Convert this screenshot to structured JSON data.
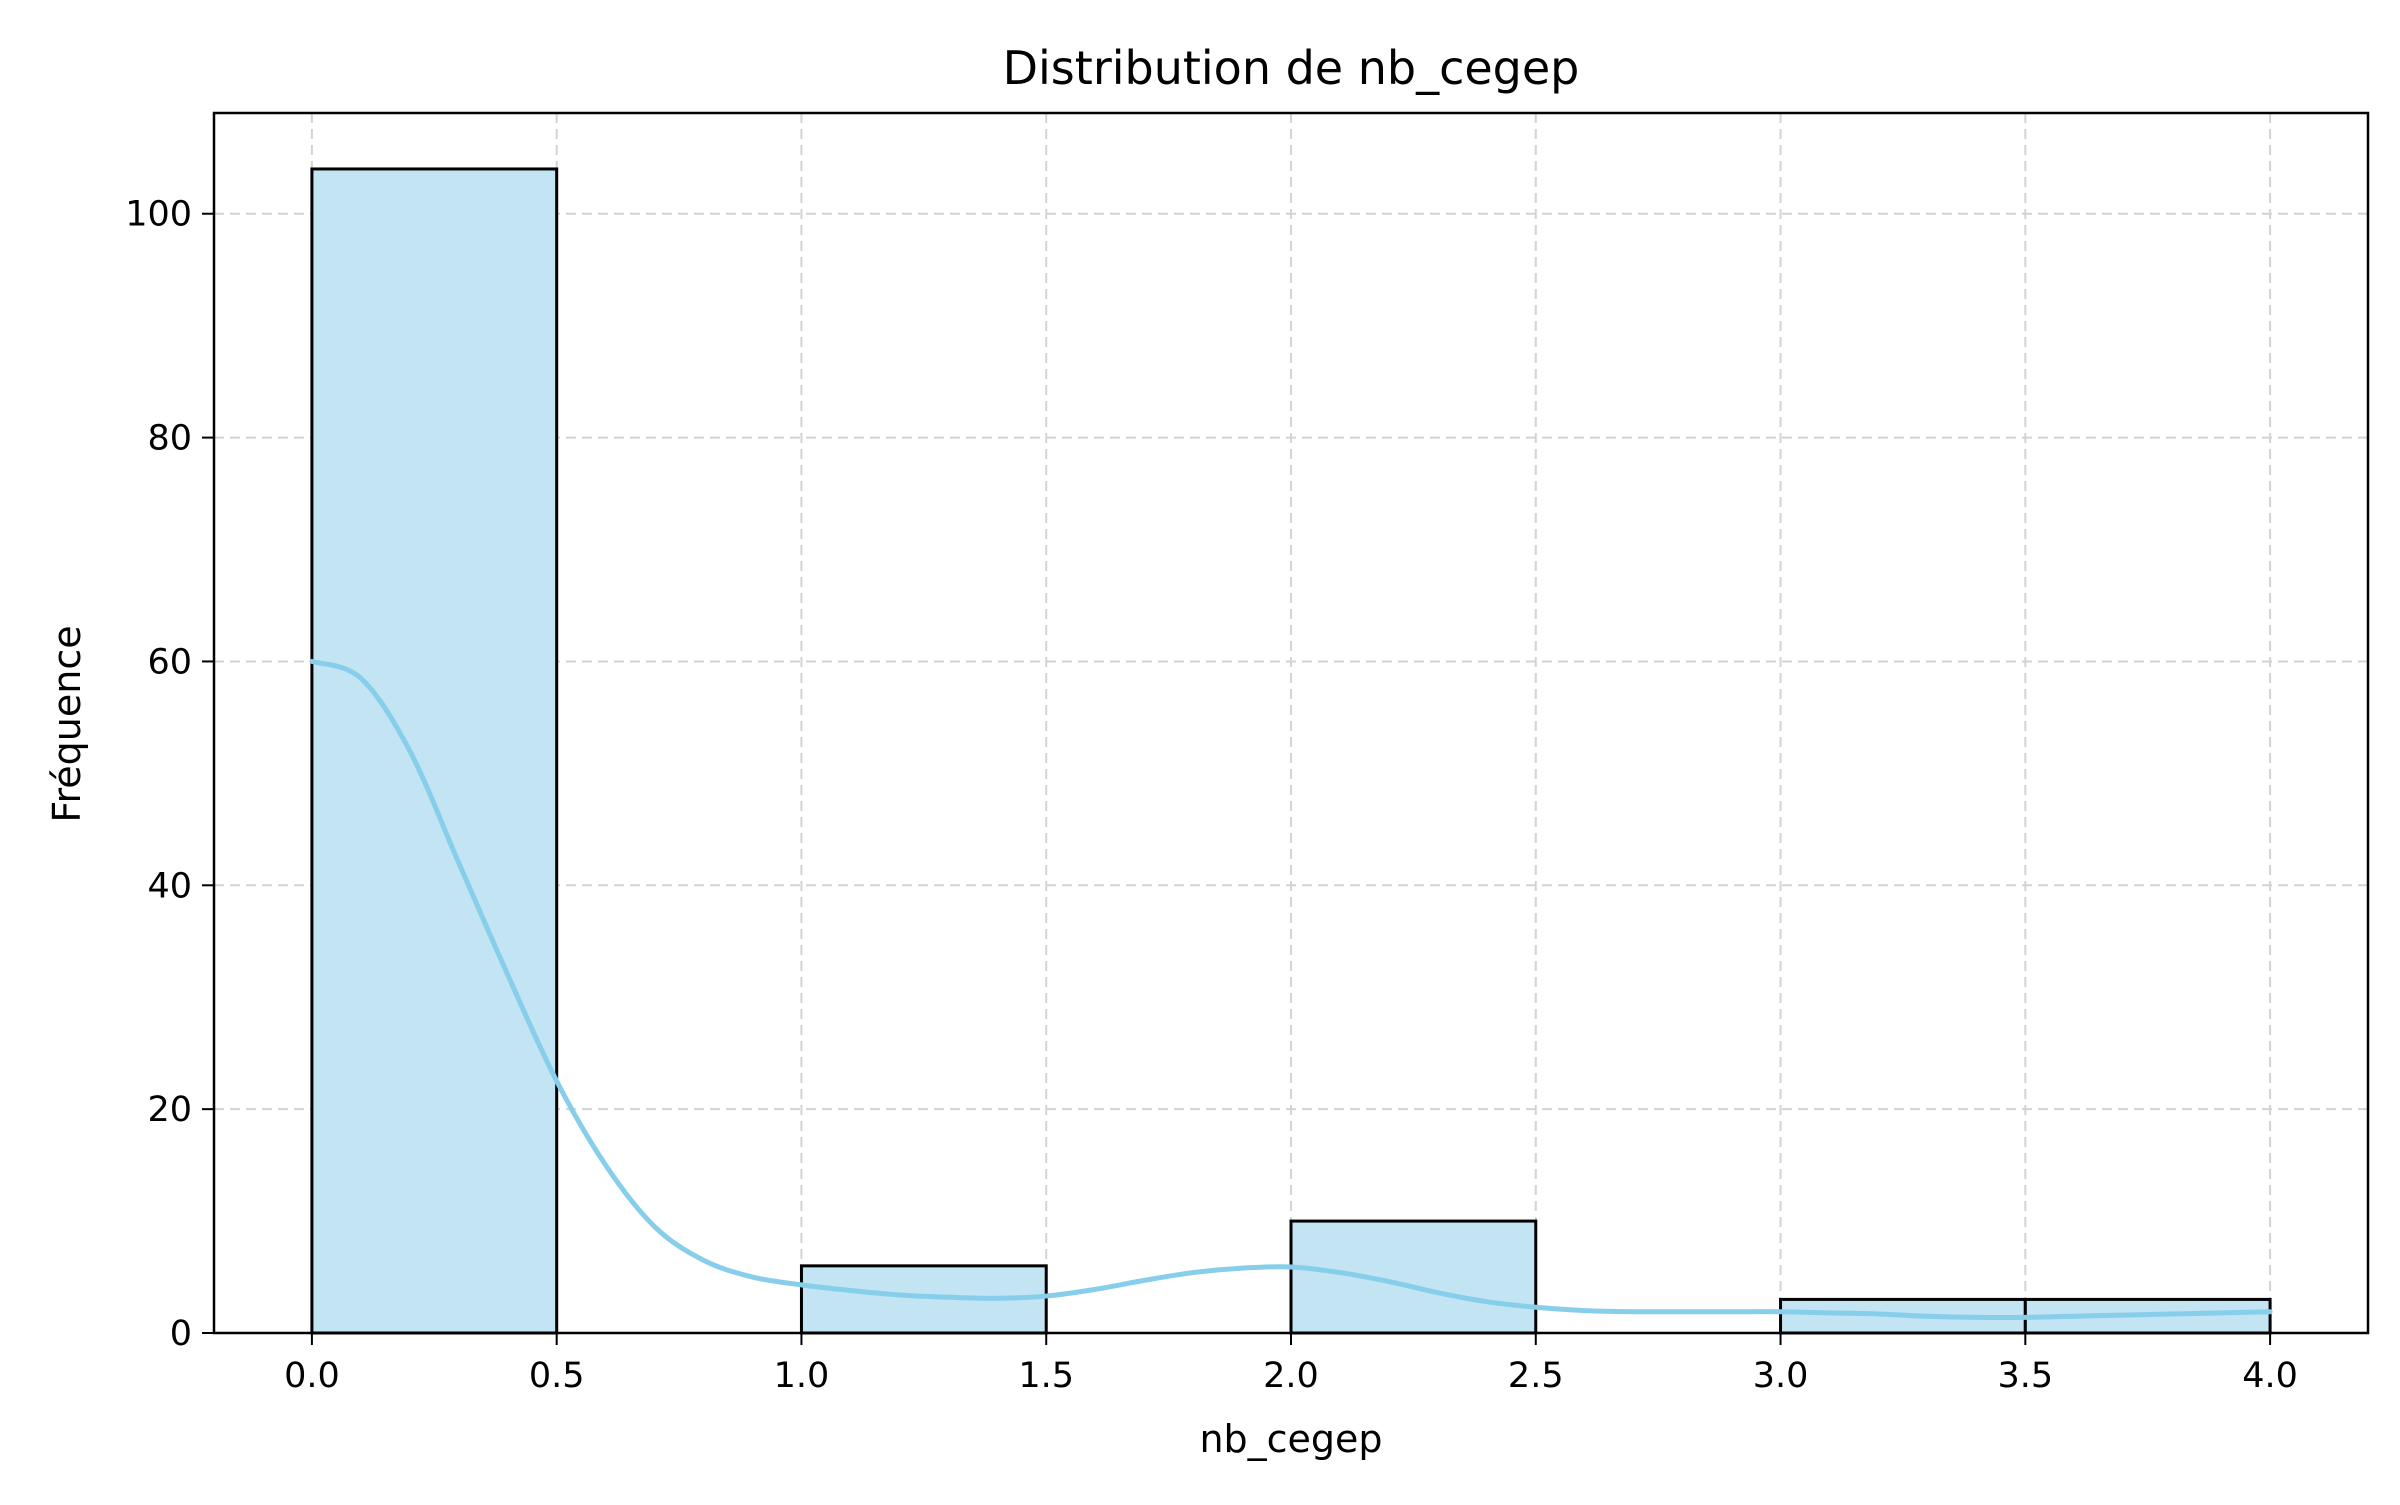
{
  "chart_data": {
    "type": "bar",
    "title": "Distribution de nb_cegep",
    "xlabel": "nb_cegep",
    "ylabel": "Fréquence",
    "xlim": [
      -0.2,
      4.2
    ],
    "ylim": [
      0,
      109
    ],
    "xticks": [
      "0.0",
      "0.5",
      "1.0",
      "1.5",
      "2.0",
      "2.5",
      "3.0",
      "3.5",
      "4.0"
    ],
    "yticks": [
      "0",
      "20",
      "40",
      "60",
      "80",
      "100"
    ],
    "bins": [
      {
        "x0": 0.0,
        "x1": 0.5,
        "count": 104
      },
      {
        "x0": 0.5,
        "x1": 1.0,
        "count": 0
      },
      {
        "x0": 1.0,
        "x1": 1.5,
        "count": 6
      },
      {
        "x0": 1.5,
        "x1": 2.0,
        "count": 0
      },
      {
        "x0": 2.0,
        "x1": 2.5,
        "count": 10
      },
      {
        "x0": 2.5,
        "x1": 3.0,
        "count": 0
      },
      {
        "x0": 3.0,
        "x1": 3.5,
        "count": 3
      },
      {
        "x0": 3.5,
        "x1": 4.0,
        "count": 3
      }
    ],
    "kde": {
      "x": [
        0.0,
        0.1,
        0.2,
        0.3,
        0.4,
        0.5,
        0.6,
        0.7,
        0.8,
        0.9,
        1.0,
        1.1,
        1.2,
        1.3,
        1.4,
        1.5,
        1.6,
        1.7,
        1.8,
        1.9,
        2.0,
        2.1,
        2.2,
        2.3,
        2.4,
        2.5,
        2.6,
        2.7,
        2.8,
        2.9,
        3.0,
        3.1,
        3.2,
        3.3,
        3.4,
        3.5,
        3.6,
        3.7,
        3.8,
        3.9,
        4.0
      ],
      "y": [
        60,
        58.5,
        52,
        42,
        32,
        22.5,
        15,
        9.5,
        6.5,
        5,
        4.3,
        3.8,
        3.4,
        3.2,
        3.1,
        3.3,
        3.9,
        4.7,
        5.4,
        5.8,
        5.9,
        5.4,
        4.6,
        3.6,
        2.8,
        2.3,
        2.0,
        1.9,
        1.9,
        1.9,
        1.9,
        1.8,
        1.7,
        1.5,
        1.4,
        1.4,
        1.5,
        1.6,
        1.7,
        1.8,
        1.9
      ]
    },
    "grid": true,
    "colors": {
      "bar_fill": "#c2e4f3",
      "bar_edge": "#000000",
      "kde_line": "#87ceeb",
      "grid": "#d3d3d3",
      "axes": "#000000"
    }
  }
}
